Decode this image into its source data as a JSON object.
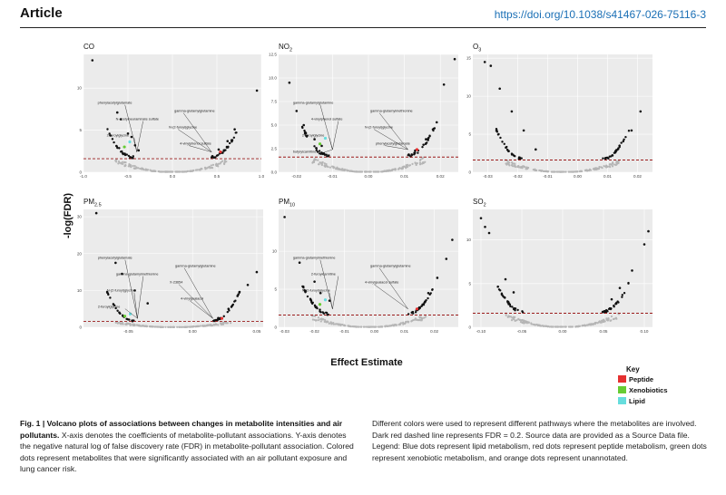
{
  "header": {
    "article_label": "Article",
    "doi": "https://doi.org/10.1038/s41467-026-75116-3"
  },
  "figure": {
    "y_axis_label": "-log(FDR)",
    "x_axis_label": "Effect Estimate",
    "threshold_fdr": 0.2,
    "key": {
      "title": "Key",
      "items": [
        {
          "label": "Peptide",
          "color": "#e53030"
        },
        {
          "label": "Xenobiotics",
          "color": "#66cc33"
        },
        {
          "label": "Lipid",
          "color": "#66dddd"
        }
      ]
    }
  },
  "chart_data": [
    {
      "type": "scatter",
      "title_main": "CO",
      "title_sub": "",
      "xlim": [
        -1.0,
        1.0
      ],
      "ylim": [
        0,
        14
      ],
      "xticks": [
        "-1.0",
        "-0.5",
        "0.0",
        "0.5",
        "1.0"
      ],
      "yticks": [
        "0",
        "5",
        "10"
      ],
      "series": [
        {
          "x": [
            -0.9,
            -0.62,
            -0.58,
            -0.5,
            -0.46,
            0.45,
            0.52,
            0.62,
            0.7,
            0.95,
            -0.42,
            -0.38
          ],
          "y": [
            13.3,
            7.1,
            6.3,
            4.6,
            4.2,
            1.9,
            2.7,
            3.7,
            5.1,
            9.7,
            3.2,
            2.6
          ]
        }
      ],
      "annotations": [
        "phenylacetylglutamate",
        "gamma-glutamylglutamine",
        "N-acetylneuraminate sulfate",
        "N-(2-furoyl)glycine",
        "2-furoylglycine",
        "4-vinylphenol sulfate"
      ]
    },
    {
      "type": "scatter",
      "title_main": "NO",
      "title_sub": "2",
      "xlim": [
        -0.025,
        0.025
      ],
      "ylim": [
        0,
        12.5
      ],
      "xticks": [
        "-0.02",
        "-0.01",
        "0.00",
        "0.01",
        "0.02"
      ],
      "yticks": [
        "0.0",
        "2.5",
        "5.0",
        "7.5",
        "10.0",
        "12.5"
      ],
      "series": [
        {
          "x": [
            -0.022,
            -0.02,
            -0.018,
            -0.015,
            -0.013,
            0.013,
            0.016,
            0.019,
            0.021,
            0.024
          ],
          "y": [
            9.5,
            6.5,
            5.0,
            3.5,
            2.8,
            2.3,
            3.5,
            5.3,
            9.3,
            12.0
          ]
        }
      ],
      "annotations": [
        "gamma-glutamylglutamine",
        "gamma-glutamylmethionine",
        "4-vinylphenol sulfate",
        "N-(2-furoyl)glycine",
        "2-furoylglycine",
        "phenylacetylglutamate",
        "butyrylcarnitine"
      ]
    },
    {
      "type": "scatter",
      "title_main": "O",
      "title_sub": "3",
      "xlim": [
        -0.035,
        0.025
      ],
      "ylim": [
        0,
        15.5
      ],
      "xticks": [
        "-0.03",
        "-0.02",
        "-0.01",
        "0.00",
        "0.01",
        "0.02"
      ],
      "yticks": [
        "0",
        "5",
        "10",
        "15"
      ],
      "series": [
        {
          "x": [
            -0.031,
            -0.029,
            -0.026,
            -0.022,
            -0.018,
            -0.014,
            0.01,
            0.014,
            0.018,
            0.021
          ],
          "y": [
            14.5,
            14.0,
            11.0,
            8.0,
            5.5,
            3.0,
            1.9,
            3.5,
            5.5,
            8.0
          ]
        }
      ],
      "annotations": []
    },
    {
      "type": "scatter",
      "title_main": "PM",
      "title_sub": "2.5",
      "xlim": [
        -0.085,
        0.055
      ],
      "ylim": [
        0,
        32
      ],
      "xticks": [
        "-0.05",
        "0.00",
        "0.05"
      ],
      "yticks": [
        "0",
        "10",
        "20",
        "30"
      ],
      "series": [
        {
          "x": [
            -0.075,
            -0.06,
            -0.055,
            -0.045,
            -0.035,
            0.02,
            0.028,
            0.035,
            0.043,
            0.05
          ],
          "y": [
            31.0,
            17.5,
            14.5,
            10.0,
            6.5,
            2.5,
            5.0,
            8.5,
            11.5,
            15.0
          ]
        }
      ],
      "annotations": [
        "phenylacetylglutamate",
        "gamma-glutamylglutamine",
        "gamma-glutamylmethionine",
        "X-23654",
        "N-(2-furoyl)glycine",
        "4-vinylguaiacol",
        "2-furoylglycine"
      ]
    },
    {
      "type": "scatter",
      "title_main": "PM",
      "title_sub": "10",
      "xlim": [
        -0.032,
        0.028
      ],
      "ylim": [
        0,
        15.5
      ],
      "xticks": [
        "-0.03",
        "-0.02",
        "-0.01",
        "0.00",
        "0.01",
        "0.02"
      ],
      "yticks": [
        "0",
        "5",
        "10"
      ],
      "series": [
        {
          "x": [
            -0.03,
            -0.025,
            -0.02,
            -0.018,
            -0.015,
            0.015,
            0.018,
            0.021,
            0.024,
            0.026
          ],
          "y": [
            14.5,
            8.5,
            6.0,
            4.5,
            3.5,
            2.6,
            4.5,
            6.5,
            9.0,
            11.5
          ]
        }
      ],
      "annotations": [
        "gamma-glutamylmethionine",
        "gamma-glutamylglutamine",
        "2-furoylcarnitine",
        "4-vinylguaiacol sulfate",
        "N-(2-furoyl)glycine"
      ]
    },
    {
      "type": "scatter",
      "title_main": "SO",
      "title_sub": "2",
      "xlim": [
        -0.11,
        0.11
      ],
      "ylim": [
        0,
        13.5
      ],
      "xticks": [
        "-0.10",
        "-0.05",
        "0.00",
        "0.05",
        "0.10"
      ],
      "yticks": [
        "0",
        "5",
        "10"
      ],
      "series": [
        {
          "x": [
            -0.1,
            -0.095,
            -0.09,
            -0.07,
            -0.06,
            0.06,
            0.07,
            0.085,
            0.1,
            0.105
          ],
          "y": [
            12.5,
            11.5,
            10.8,
            5.5,
            4.0,
            3.2,
            4.5,
            6.5,
            9.5,
            11.0
          ]
        }
      ],
      "annotations": []
    }
  ],
  "caption": {
    "left_bold": "Fig. 1 | Volcano plots of associations between changes in metabolite intensities and air pollutants.",
    "left_text": " X-axis denotes the coefficients of metabolite-pollutant associations. Y-axis denotes the negative natural log of false discovery rate (FDR) in metabolite-pollutant association. Colored dots represent metabolites that were significantly associated with an air pollutant exposure and lung cancer risk.",
    "right_text": "Different colors were used to represent different pathways where the metabolites are involved. Dark red dashed line represents FDR = 0.2. Source data are provided as a Source Data file. Legend: Blue dots represent lipid metabolism, red dots represent peptide metabolism, green dots represent xenobiotic metabolism, and orange dots represent unannotated."
  }
}
